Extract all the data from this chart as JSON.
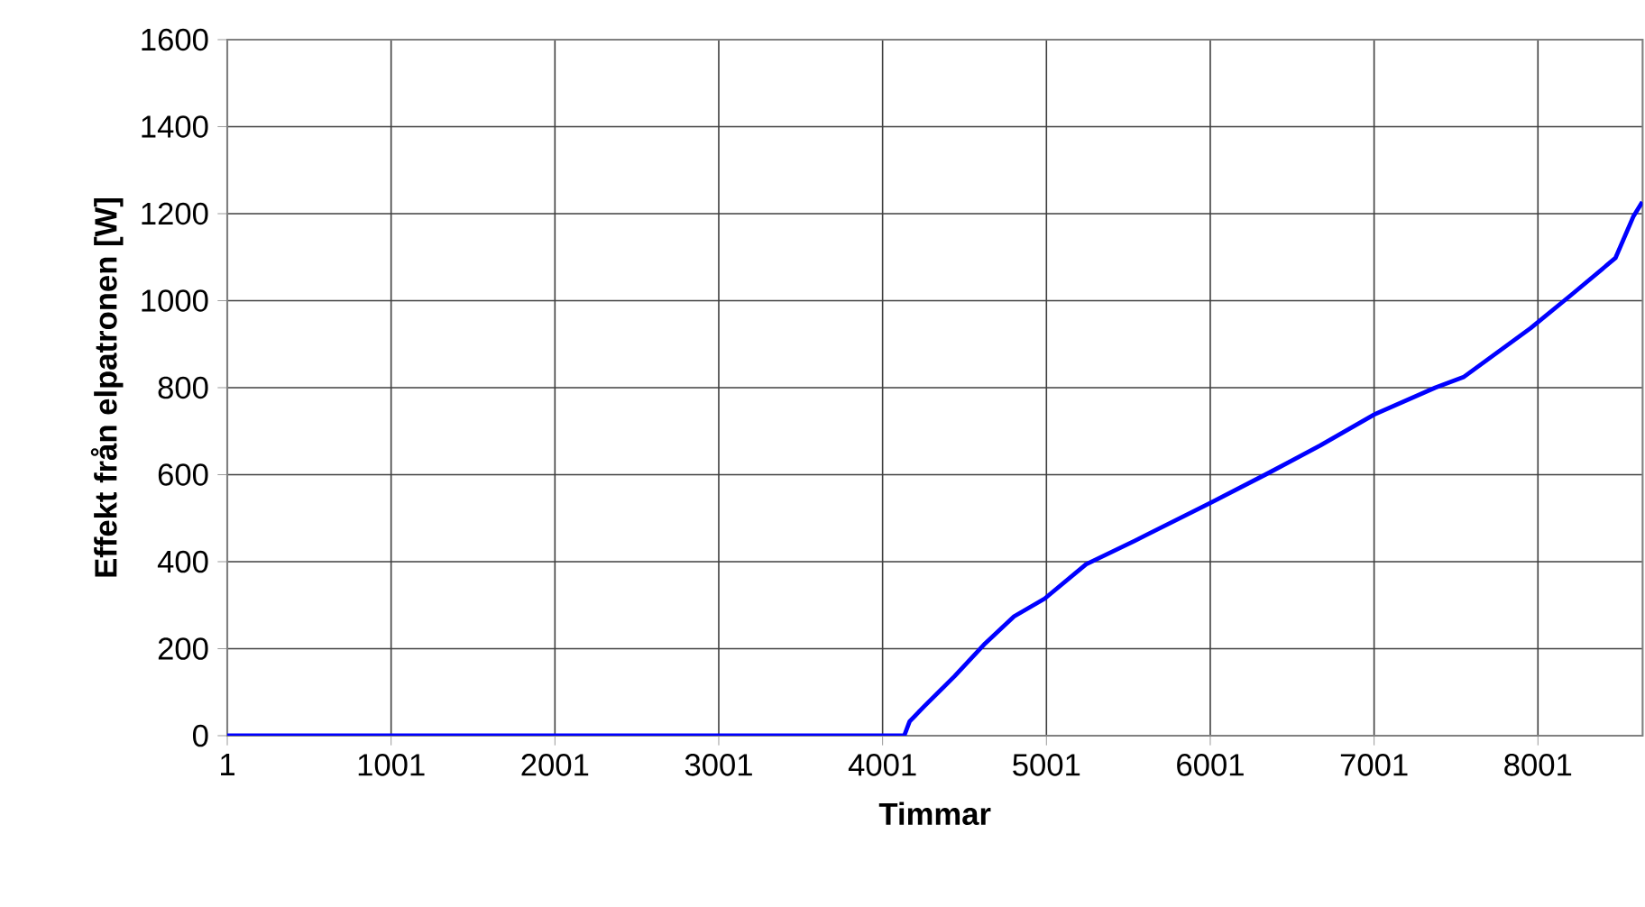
{
  "chart_data": {
    "type": "line",
    "xlabel": "Timmar",
    "ylabel": "Effekt från elpatronen [W]",
    "x": [
      1,
      4133,
      4166,
      4254,
      4441,
      4627,
      4803,
      4990,
      5243,
      5540,
      6001,
      6342,
      6672,
      7001,
      7374,
      7550,
      7957,
      8210,
      8474,
      8583,
      8638
    ],
    "series": [
      {
        "color": "#0000ff",
        "values": [
          0,
          0,
          33,
          67,
          137,
          212,
          274,
          315,
          394,
          448,
          535,
          601,
          667,
          738,
          800,
          825,
          937,
          1015,
          1098,
          1193,
          1227
        ]
      }
    ],
    "xlim": [
      1,
      8640
    ],
    "ylim": [
      0,
      1600
    ],
    "xticks": [
      1,
      1001,
      2001,
      3001,
      4001,
      5001,
      6001,
      7001,
      8001
    ],
    "yticks": [
      0,
      200,
      400,
      600,
      800,
      1000,
      1200,
      1400,
      1600
    ],
    "grid": true
  }
}
